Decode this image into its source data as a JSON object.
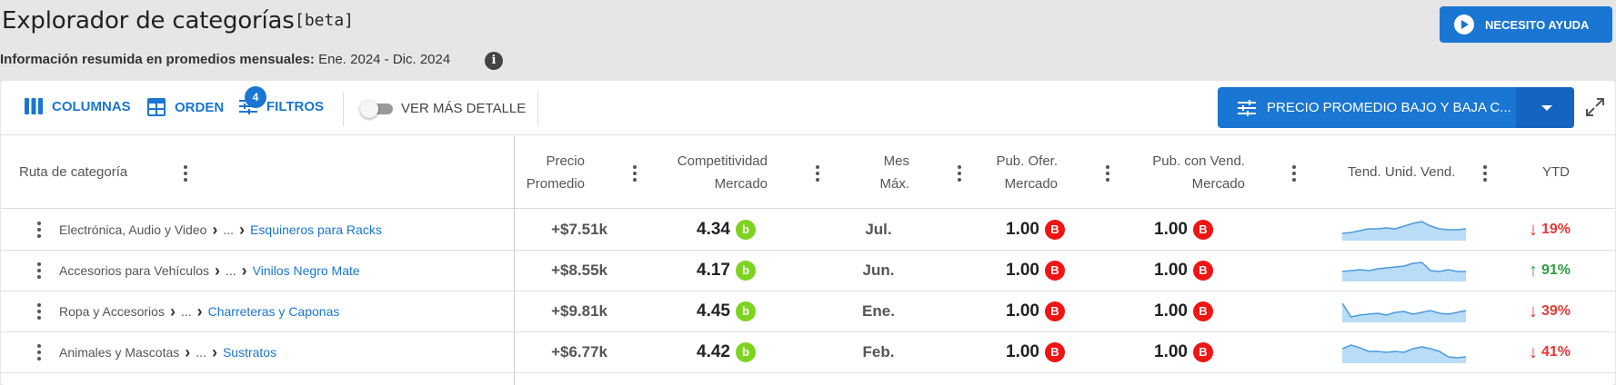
{
  "header": {
    "title": "Explorador de categorías",
    "beta": "[beta]",
    "summary_label": "Información resumida en promedios mensuales:",
    "summary_range": "Ene. 2024 - Dic. 2024",
    "info_icon": "i",
    "help_button": "NECESITO AYUDA"
  },
  "toolbar": {
    "columns": "COLUMNAS",
    "order": "ORDEN",
    "filters": "FILTROS",
    "filters_count": "4",
    "detail_toggle": "VER MÁS DETALLE",
    "detail_toggle_on": false,
    "sort_select": "PRECIO PROMEDIO BAJO Y BAJA C..."
  },
  "columns": {
    "path": "Ruta de categoría",
    "price_1": "Precio",
    "price_2": "Promedio",
    "comp_1": "Competitividad",
    "comp_2": "Mercado",
    "month_1": "Mes",
    "month_2": "Máx.",
    "pub1_1": "Pub. Ofer.",
    "pub1_2": "Mercado",
    "pub2_1": "Pub. con Vend.",
    "pub2_2": "Mercado",
    "trend": "Tend. Unid. Vend.",
    "ytd": "YTD"
  },
  "rows": [
    {
      "root": "Electrónica, Audio y Video",
      "ellipsis": "...",
      "leaf": "Esquineros para Racks",
      "price": "+$7.51k",
      "comp": "4.34",
      "comp_badge": "b",
      "month": "Jul.",
      "pub1": "1.00",
      "pub1_badge": "B",
      "pub2": "1.00",
      "pub2_badge": "B",
      "trend": [
        0.3,
        0.35,
        0.45,
        0.55,
        0.55,
        0.6,
        0.55,
        0.7,
        0.85,
        0.95,
        0.7,
        0.55,
        0.5,
        0.5,
        0.55
      ],
      "ytd": "19%",
      "ytd_arrow": "↓",
      "ytd_dir": "down"
    },
    {
      "root": "Accesorios para Vehículos",
      "ellipsis": "...",
      "leaf": "Vinilos Negro Mate",
      "price": "+$8.55k",
      "comp": "4.17",
      "comp_badge": "b",
      "month": "Jun.",
      "pub1": "1.00",
      "pub1_badge": "B",
      "pub2": "1.00",
      "pub2_badge": "B",
      "trend": [
        0.45,
        0.5,
        0.55,
        0.5,
        0.6,
        0.65,
        0.7,
        0.75,
        0.9,
        0.95,
        0.5,
        0.45,
        0.55,
        0.45,
        0.45
      ],
      "ytd": "91%",
      "ytd_arrow": "↑",
      "ytd_dir": "up"
    },
    {
      "root": "Ropa y Accesorios",
      "ellipsis": "...",
      "leaf": "Charreteras y Caponas",
      "price": "+$9.81k",
      "comp": "4.45",
      "comp_badge": "b",
      "month": "Ene.",
      "pub1": "1.00",
      "pub1_badge": "B",
      "pub2": "1.00",
      "pub2_badge": "B",
      "trend": [
        0.95,
        0.2,
        0.3,
        0.35,
        0.4,
        0.3,
        0.45,
        0.5,
        0.35,
        0.45,
        0.55,
        0.4,
        0.35,
        0.45,
        0.55
      ],
      "ytd": "39%",
      "ytd_arrow": "↓",
      "ytd_dir": "down"
    },
    {
      "root": "Animales y Mascotas",
      "ellipsis": "...",
      "leaf": "Sustratos",
      "price": "+$6.77k",
      "comp": "4.42",
      "comp_badge": "b",
      "month": "Feb.",
      "pub1": "1.00",
      "pub1_badge": "B",
      "pub2": "1.00",
      "pub2_badge": "B",
      "trend": [
        0.7,
        0.9,
        0.75,
        0.55,
        0.55,
        0.5,
        0.55,
        0.5,
        0.7,
        0.8,
        0.7,
        0.55,
        0.25,
        0.2,
        0.25
      ],
      "ytd": "41%",
      "ytd_arrow": "↓",
      "ytd_dir": "down"
    }
  ],
  "colors": {
    "accent": "#1976d2",
    "green_badge": "#7ed321",
    "red_badge": "#f01414",
    "down": "#e53935",
    "up": "#2e9e3e",
    "spark_line": "#4a9be0",
    "spark_fill": "#b9dcf7"
  }
}
